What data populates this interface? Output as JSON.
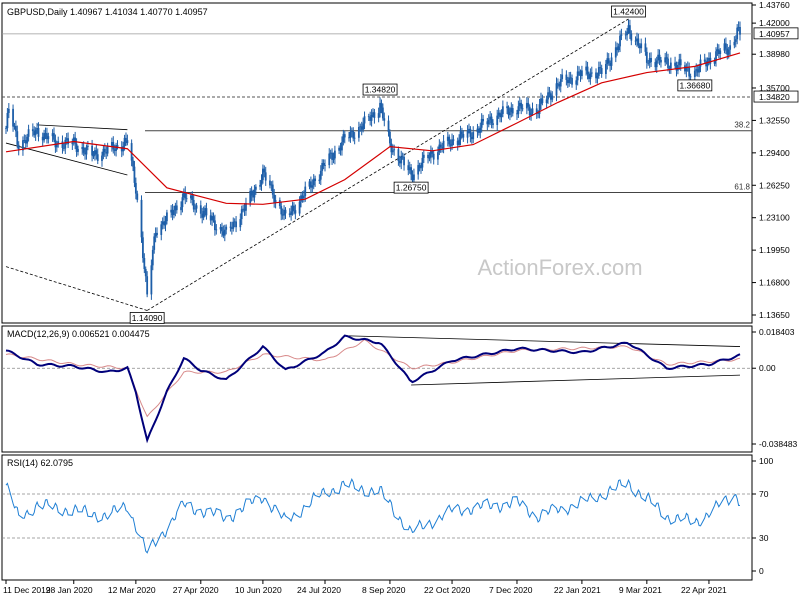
{
  "chart_data": {
    "type": "candlestick",
    "symbol_header": "GBPUSD,Daily  1.40967 1.41034 1.40770 1.40957",
    "watermark": "ActionForex.com",
    "current_price": 1.40957,
    "x_labels": [
      "11 Dec 2019",
      "28 Jan 2020",
      "12 Mar 2020",
      "27 Apr 2020",
      "10 Jun 2020",
      "24 Jul 2020",
      "8 Sep 2020",
      "22 Oct 2020",
      "7 Dec 2020",
      "22 Jan 2021",
      "9 Mar 2021",
      "22 Apr 2021"
    ],
    "price_panel": {
      "ylim": [
        1.1365,
        1.4376
      ],
      "y_ticks": [
        "1.43760",
        "1.42000",
        "1.38980",
        "1.35700",
        "1.32550",
        "1.29400",
        "1.26250",
        "1.23100",
        "1.19950",
        "1.16800",
        "1.13650"
      ],
      "y_tick_values": [
        1.4376,
        1.42,
        1.3898,
        1.357,
        1.3255,
        1.294,
        1.2625,
        1.231,
        1.1995,
        1.168,
        1.1365
      ],
      "swing_labels": [
        {
          "text": "1.42400",
          "value": 1.424,
          "date": "2021-02-24"
        },
        {
          "text": "1.36680",
          "value": 1.3668,
          "date": "2021-04-12"
        },
        {
          "text": "1.34820",
          "value": 1.3482,
          "date": "2020-09-01"
        },
        {
          "text": "1.26750",
          "value": 1.2675,
          "date": "2020-09-23"
        },
        {
          "text": "1.14090",
          "value": 1.1409,
          "date": "2020-03-20"
        }
      ],
      "horizontal_levels": [
        {
          "label": "1.34820",
          "value": 1.3482
        },
        {
          "label": "38.2",
          "value": 1.3155
        },
        {
          "label": "61.8",
          "value": 1.2555
        }
      ],
      "price_series": [
        {
          "date": "2019-12-11",
          "close": 1.318
        },
        {
          "date": "2019-12-13",
          "close": 1.335
        },
        {
          "date": "2019-12-20",
          "close": 1.302
        },
        {
          "date": "2020-01-02",
          "close": 1.316
        },
        {
          "date": "2020-01-15",
          "close": 1.304
        },
        {
          "date": "2020-01-28",
          "close": 1.303
        },
        {
          "date": "2020-02-10",
          "close": 1.292
        },
        {
          "date": "2020-02-21",
          "close": 1.296
        },
        {
          "date": "2020-03-06",
          "close": 1.305
        },
        {
          "date": "2020-03-12",
          "close": 1.26
        },
        {
          "date": "2020-03-16",
          "close": 1.212
        },
        {
          "date": "2020-03-20",
          "close": 1.153
        },
        {
          "date": "2020-03-26",
          "close": 1.22
        },
        {
          "date": "2020-04-03",
          "close": 1.229
        },
        {
          "date": "2020-04-15",
          "close": 1.252
        },
        {
          "date": "2020-04-27",
          "close": 1.238
        },
        {
          "date": "2020-05-15",
          "close": 1.215
        },
        {
          "date": "2020-05-29",
          "close": 1.242
        },
        {
          "date": "2020-06-10",
          "close": 1.274
        },
        {
          "date": "2020-06-26",
          "close": 1.23
        },
        {
          "date": "2020-07-10",
          "close": 1.255
        },
        {
          "date": "2020-07-24",
          "close": 1.283
        },
        {
          "date": "2020-08-07",
          "close": 1.307
        },
        {
          "date": "2020-08-21",
          "close": 1.322
        },
        {
          "date": "2020-09-01",
          "close": 1.34
        },
        {
          "date": "2020-09-08",
          "close": 1.302
        },
        {
          "date": "2020-09-23",
          "close": 1.273
        },
        {
          "date": "2020-10-08",
          "close": 1.294
        },
        {
          "date": "2020-10-22",
          "close": 1.306
        },
        {
          "date": "2020-11-06",
          "close": 1.314
        },
        {
          "date": "2020-11-20",
          "close": 1.328
        },
        {
          "date": "2020-12-07",
          "close": 1.338
        },
        {
          "date": "2020-12-21",
          "close": 1.335
        },
        {
          "date": "2021-01-05",
          "close": 1.361
        },
        {
          "date": "2021-01-22",
          "close": 1.371
        },
        {
          "date": "2021-02-05",
          "close": 1.372
        },
        {
          "date": "2021-02-24",
          "close": 1.415
        },
        {
          "date": "2021-03-09",
          "close": 1.385
        },
        {
          "date": "2021-03-23",
          "close": 1.382
        },
        {
          "date": "2021-04-12",
          "close": 1.372
        },
        {
          "date": "2021-04-22",
          "close": 1.385
        },
        {
          "date": "2021-04-30",
          "close": 1.392
        },
        {
          "date": "2021-05-07",
          "close": 1.397
        },
        {
          "date": "2021-05-12",
          "close": 1.411
        },
        {
          "date": "2021-05-14",
          "close": 1.40957
        }
      ],
      "ema55": [
        {
          "date": "2019-12-11",
          "value": 1.295
        },
        {
          "date": "2020-01-28",
          "value": 1.305
        },
        {
          "date": "2020-03-06",
          "value": 1.298
        },
        {
          "date": "2020-04-03",
          "value": 1.26
        },
        {
          "date": "2020-05-15",
          "value": 1.245
        },
        {
          "date": "2020-06-10",
          "value": 1.244
        },
        {
          "date": "2020-07-10",
          "value": 1.249
        },
        {
          "date": "2020-08-07",
          "value": 1.268
        },
        {
          "date": "2020-09-08",
          "value": 1.3
        },
        {
          "date": "2020-10-08",
          "value": 1.296
        },
        {
          "date": "2020-11-06",
          "value": 1.302
        },
        {
          "date": "2020-12-07",
          "value": 1.323
        },
        {
          "date": "2021-01-05",
          "value": 1.343
        },
        {
          "date": "2021-02-05",
          "value": 1.362
        },
        {
          "date": "2021-03-09",
          "value": 1.372
        },
        {
          "date": "2021-04-12",
          "value": 1.378
        },
        {
          "date": "2021-05-14",
          "value": 1.391
        }
      ],
      "trend_lines": [
        {
          "from": {
            "date": "2020-01-02",
            "value": 1.3212
          },
          "to": {
            "date": "2020-03-06",
            "value": 1.3165
          }
        },
        {
          "from": {
            "date": "2019-12-11",
            "value": 1.3035
          },
          "to": {
            "date": "2020-03-06",
            "value": 1.2725
          }
        },
        {
          "from": {
            "date": "2019-12-11",
            "value": 1.1835
          },
          "to": {
            "date": "2020-03-20",
            "value": 1.1409
          }
        },
        {
          "from": {
            "date": "2020-03-20",
            "value": 1.1409
          },
          "to": {
            "date": "2021-02-24",
            "value": 1.424
          }
        }
      ]
    },
    "macd_panel": {
      "title": "MACD(12,26,9) 0.006521 0.004475",
      "ylim": [
        -0.038483,
        0.018403
      ],
      "y_ticks": [
        "0.018403",
        "0.00",
        "-0.038483"
      ],
      "y_tick_values": [
        0.018403,
        0,
        -0.038483
      ],
      "macd_series": [
        {
          "date": "2019-12-11",
          "value": 0.009
        },
        {
          "date": "2020-01-02",
          "value": 0.002
        },
        {
          "date": "2020-01-28",
          "value": 0.001
        },
        {
          "date": "2020-02-21",
          "value": -0.002
        },
        {
          "date": "2020-03-06",
          "value": 0.0
        },
        {
          "date": "2020-03-12",
          "value": -0.012
        },
        {
          "date": "2020-03-20",
          "value": -0.037
        },
        {
          "date": "2020-04-03",
          "value": -0.012
        },
        {
          "date": "2020-04-15",
          "value": 0.005
        },
        {
          "date": "2020-04-27",
          "value": -0.001
        },
        {
          "date": "2020-05-15",
          "value": -0.006
        },
        {
          "date": "2020-06-10",
          "value": 0.011
        },
        {
          "date": "2020-06-26",
          "value": -0.001
        },
        {
          "date": "2020-07-24",
          "value": 0.008
        },
        {
          "date": "2020-08-07",
          "value": 0.016
        },
        {
          "date": "2020-09-01",
          "value": 0.013
        },
        {
          "date": "2020-09-23",
          "value": -0.007
        },
        {
          "date": "2020-10-22",
          "value": 0.004
        },
        {
          "date": "2020-12-07",
          "value": 0.01
        },
        {
          "date": "2021-01-22",
          "value": 0.008
        },
        {
          "date": "2021-02-24",
          "value": 0.013
        },
        {
          "date": "2021-03-23",
          "value": 0.0
        },
        {
          "date": "2021-04-22",
          "value": 0.002
        },
        {
          "date": "2021-05-14",
          "value": 0.006521
        }
      ],
      "signal_series": [
        {
          "date": "2019-12-11",
          "value": 0.007
        },
        {
          "date": "2020-01-28",
          "value": 0.002
        },
        {
          "date": "2020-03-06",
          "value": 0.0
        },
        {
          "date": "2020-03-20",
          "value": -0.025
        },
        {
          "date": "2020-04-15",
          "value": -0.002
        },
        {
          "date": "2020-05-15",
          "value": -0.002
        },
        {
          "date": "2020-06-10",
          "value": 0.007
        },
        {
          "date": "2020-07-24",
          "value": 0.004
        },
        {
          "date": "2020-08-21",
          "value": 0.014
        },
        {
          "date": "2020-09-23",
          "value": 0.0
        },
        {
          "date": "2020-10-22",
          "value": 0.003
        },
        {
          "date": "2020-12-07",
          "value": 0.009
        },
        {
          "date": "2021-02-24",
          "value": 0.011
        },
        {
          "date": "2021-03-23",
          "value": 0.002
        },
        {
          "date": "2021-05-14",
          "value": 0.004475
        }
      ],
      "trend_lines": [
        {
          "from": {
            "date": "2020-08-07",
            "value": 0.0165
          },
          "to": {
            "date": "2021-05-14",
            "value": 0.011
          }
        },
        {
          "from": {
            "date": "2020-09-23",
            "value": -0.0085
          },
          "to": {
            "date": "2021-05-14",
            "value": -0.0035
          }
        }
      ]
    },
    "rsi_panel": {
      "title": "RSI(14) 62.0795",
      "ylim": [
        0,
        100
      ],
      "y_ticks": [
        "100",
        "70",
        "30",
        "0"
      ],
      "y_tick_values": [
        100,
        70,
        30,
        0
      ],
      "rsi_series": [
        {
          "date": "2019-12-11",
          "value": 78
        },
        {
          "date": "2019-12-20",
          "value": 48
        },
        {
          "date": "2020-01-02",
          "value": 60
        },
        {
          "date": "2020-01-28",
          "value": 55
        },
        {
          "date": "2020-02-21",
          "value": 50
        },
        {
          "date": "2020-03-06",
          "value": 60
        },
        {
          "date": "2020-03-20",
          "value": 16
        },
        {
          "date": "2020-04-15",
          "value": 60
        },
        {
          "date": "2020-05-15",
          "value": 48
        },
        {
          "date": "2020-06-10",
          "value": 68
        },
        {
          "date": "2020-06-26",
          "value": 45
        },
        {
          "date": "2020-07-24",
          "value": 72
        },
        {
          "date": "2020-08-07",
          "value": 78
        },
        {
          "date": "2020-09-01",
          "value": 72
        },
        {
          "date": "2020-09-23",
          "value": 35
        },
        {
          "date": "2020-10-22",
          "value": 55
        },
        {
          "date": "2020-12-07",
          "value": 62
        },
        {
          "date": "2020-12-21",
          "value": 50
        },
        {
          "date": "2021-01-22",
          "value": 62
        },
        {
          "date": "2021-02-24",
          "value": 80
        },
        {
          "date": "2021-03-23",
          "value": 50
        },
        {
          "date": "2021-04-12",
          "value": 44
        },
        {
          "date": "2021-04-30",
          "value": 60
        },
        {
          "date": "2021-05-12",
          "value": 70
        },
        {
          "date": "2021-05-14",
          "value": 62.0795
        }
      ]
    },
    "colors": {
      "candle_body": "#1d5ea8",
      "candle_wick": "#1d5ea8",
      "ema": "#d40000",
      "macd": "#00007a",
      "signal": "#d88a8a",
      "rsi": "#1f7fd4",
      "grid_line": "#000000",
      "dashed_level": "#888888",
      "watermark": "#c8c8c8"
    }
  }
}
